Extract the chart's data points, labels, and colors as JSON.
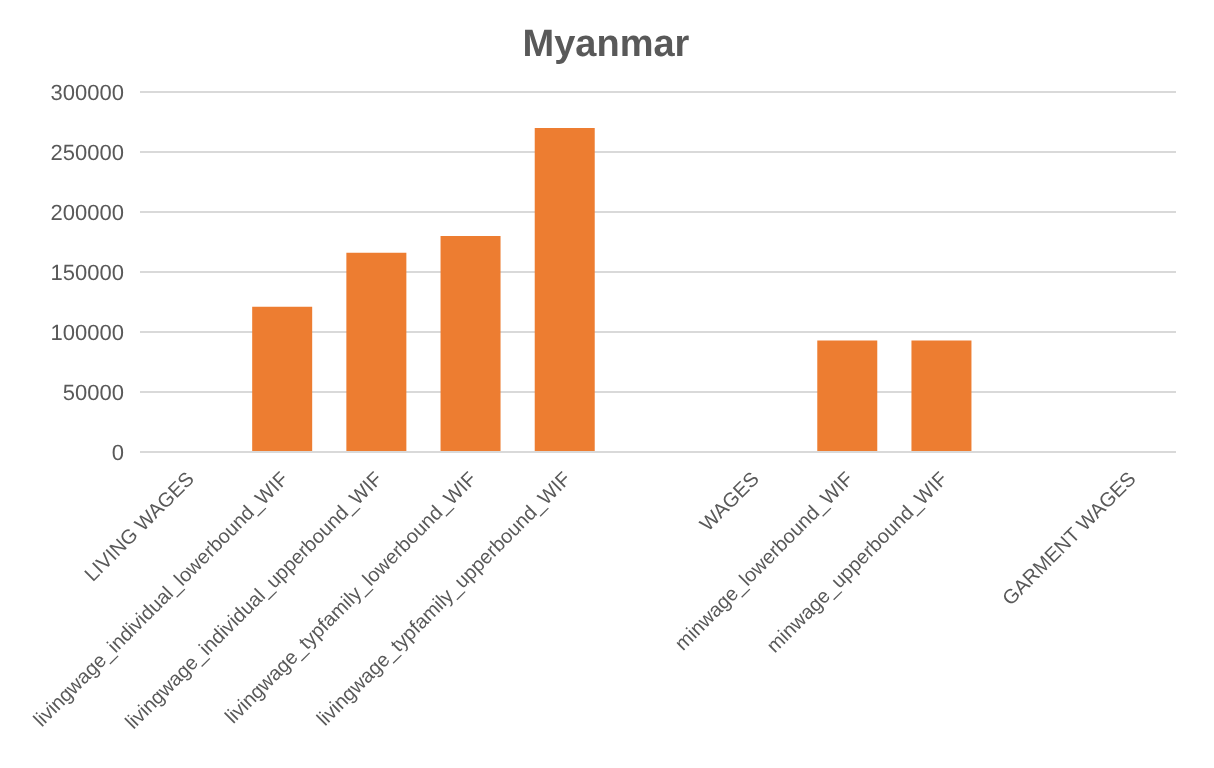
{
  "chart_data": {
    "type": "bar",
    "title": "Myanmar",
    "categories": [
      "LIVING WAGES",
      "livingwage_individual_lowerbound_WIF",
      "livingwage_individual_upperbound_WIF",
      "livingwage_typfamily_lowerbound_WIF",
      "livingwage_typfamily_upperbound_WIF",
      null,
      "WAGES",
      "minwage_lowerbound_WIF",
      "minwage_upperbound_WIF",
      null,
      "GARMENT WAGES"
    ],
    "values": [
      null,
      121000,
      166000,
      180000,
      270000,
      null,
      null,
      93000,
      93000,
      null,
      null
    ],
    "color": "#ed7d31",
    "ylim": [
      0,
      300000
    ],
    "yticks": [
      0,
      50000,
      100000,
      150000,
      200000,
      250000,
      300000
    ],
    "grid": "y",
    "legend": false
  }
}
